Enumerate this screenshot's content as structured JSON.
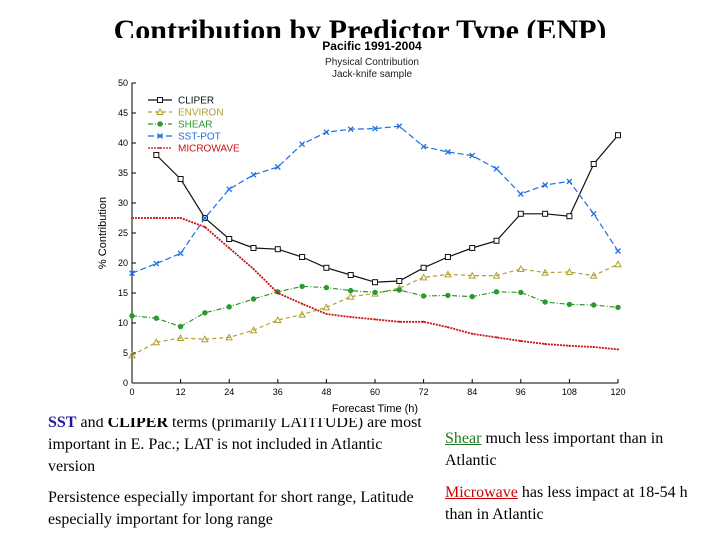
{
  "slide_title": "Contribution by Predictor Type (ENP)",
  "chart_data": {
    "type": "line",
    "title": "Pacific 1991-2004",
    "subtitle_lines": [
      "Physical Contribution",
      "Jack-knife sample"
    ],
    "xlabel": "Forecast Time (h)",
    "ylabel": "% Contribution",
    "x": [
      0,
      12,
      24,
      36,
      48,
      60,
      72,
      84,
      96,
      108,
      120
    ],
    "x_ticks": [
      0,
      12,
      24,
      36,
      48,
      60,
      72,
      84,
      96,
      108,
      120
    ],
    "xlim": [
      0,
      120
    ],
    "y_ticks": [
      0,
      5,
      10,
      15,
      20,
      25,
      30,
      35,
      40,
      45,
      50
    ],
    "ylim": [
      0,
      50
    ],
    "legend_position": "top-left",
    "series": [
      {
        "name": "CLIPER",
        "color": "#111111",
        "marker": "square",
        "x": [
          6,
          12,
          18,
          24,
          30,
          36,
          42,
          48,
          54,
          60,
          66,
          72,
          78,
          84,
          90,
          96,
          102,
          108,
          114,
          120
        ],
        "values": [
          38,
          34,
          27.5,
          24,
          22.5,
          22.3,
          21,
          19.2,
          18,
          16.8,
          17,
          19.2,
          21,
          22.5,
          23.7,
          28.2,
          28.2,
          27.8,
          36.5,
          41.3
        ]
      },
      {
        "name": "ENVIRON",
        "color": "#b0a030",
        "marker": "triangle",
        "x": [
          0,
          6,
          12,
          18,
          24,
          30,
          36,
          42,
          48,
          54,
          60,
          66,
          72,
          78,
          84,
          90,
          96,
          102,
          108,
          114,
          120
        ],
        "values": [
          4.6,
          6.8,
          7.5,
          7.3,
          7.6,
          8.8,
          10.5,
          11.4,
          12.6,
          14.4,
          14.9,
          15.8,
          17.6,
          18.1,
          17.9,
          17.9,
          19,
          18.4,
          18.5,
          17.9,
          19.8
        ]
      },
      {
        "name": "SHEAR",
        "color": "#2a9a2a",
        "marker": "circle",
        "x": [
          0,
          6,
          12,
          18,
          24,
          30,
          36,
          42,
          48,
          54,
          60,
          66,
          72,
          78,
          84,
          90,
          96,
          102,
          108,
          114,
          120
        ],
        "values": [
          11.2,
          10.8,
          9.4,
          11.7,
          12.7,
          14,
          15.2,
          16.1,
          15.9,
          15.4,
          15.1,
          15.5,
          14.5,
          14.6,
          14.4,
          15.2,
          15.1,
          13.5,
          13.1,
          13,
          12.6
        ]
      },
      {
        "name": "SST-POT",
        "color": "#1f6fe0",
        "marker": "x",
        "x": [
          0,
          6,
          12,
          18,
          24,
          30,
          36,
          42,
          48,
          54,
          60,
          66,
          72,
          78,
          84,
          90,
          96,
          102,
          108,
          114,
          120
        ],
        "values": [
          18.3,
          19.9,
          21.6,
          27.5,
          32.3,
          34.7,
          36,
          39.8,
          41.8,
          42.3,
          42.4,
          42.8,
          39.4,
          38.5,
          37.9,
          35.7,
          31.5,
          33,
          33.6,
          28.2,
          22
        ]
      },
      {
        "name": "MICROWAVE",
        "color": "#cc1111",
        "marker": "dot",
        "x": [
          0,
          6,
          12,
          18,
          24,
          30,
          36,
          42,
          48,
          54,
          60,
          66,
          72,
          78,
          84,
          90,
          96,
          102,
          108,
          114,
          120
        ],
        "values": [
          27.5,
          27.5,
          27.5,
          26,
          22.5,
          19,
          15,
          13.2,
          11.5,
          11,
          10.6,
          10.2,
          10.2,
          9.3,
          8.2,
          7.6,
          7,
          6.5,
          6.2,
          6,
          5.6
        ]
      }
    ]
  },
  "notes": {
    "note1": {
      "kw1": "SST",
      "t1": " and ",
      "kw2": "CLIPER",
      "t2": " terms (primarily LATITUDE) are most important in E. Pac.; LAT is not included in Atlantic version"
    },
    "note2": {
      "text": "Persistence especially important for short range, Latitude especially important for long range"
    },
    "note3": {
      "kw": "Shear",
      "text": " much less important than in Atlantic"
    },
    "note4": {
      "kw": "Microwave",
      "text": " has less impact at 18-54 h than in Atlantic"
    }
  }
}
